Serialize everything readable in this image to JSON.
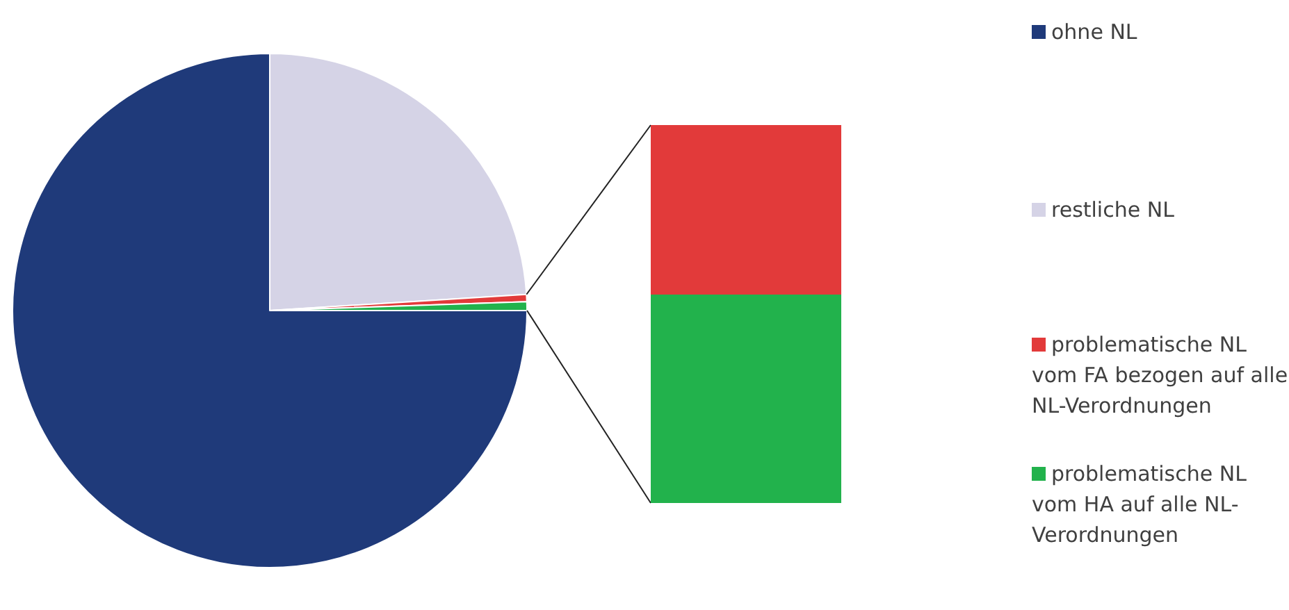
{
  "chart_data": {
    "type": "pie",
    "categories": [
      "ohne NL",
      "restliche NL",
      "problematische NL vom FA bezogen auf alle NL-Verordnungen",
      "problematische NL vom HA auf alle NL-Verordnungen"
    ],
    "values": [
      75,
      24,
      0.45,
      0.55
    ],
    "colors": [
      "#1f3a7a",
      "#d5d3e6",
      "#e23a3a",
      "#22b24c"
    ],
    "legend": "right"
  }
}
